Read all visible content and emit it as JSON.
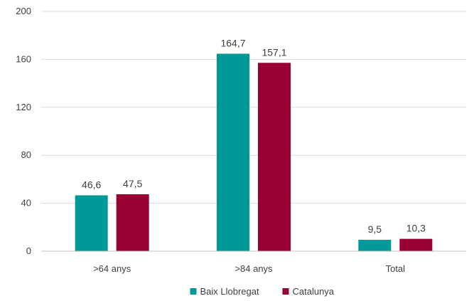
{
  "chart_data": {
    "type": "bar",
    "title": "",
    "xlabel": "",
    "ylabel": "",
    "categories": [
      ">64 anys",
      ">84 anys",
      "Total"
    ],
    "series": [
      {
        "name": "Baix Llobregat",
        "values": [
          46.6,
          164.7,
          9.5
        ],
        "labels": [
          "46,6",
          "164,7",
          "9,5"
        ],
        "color": "#009999"
      },
      {
        "name": "Catalunya",
        "values": [
          47.5,
          157.1,
          10.3
        ],
        "labels": [
          "47,5",
          "157,1",
          "10,3"
        ],
        "color": "#990033"
      }
    ],
    "ylim": [
      0,
      200
    ],
    "yticks": [
      0,
      40,
      80,
      120,
      160,
      200
    ],
    "grid": true,
    "gridColor": "#d9d9d9",
    "legend_position": "bottom"
  }
}
